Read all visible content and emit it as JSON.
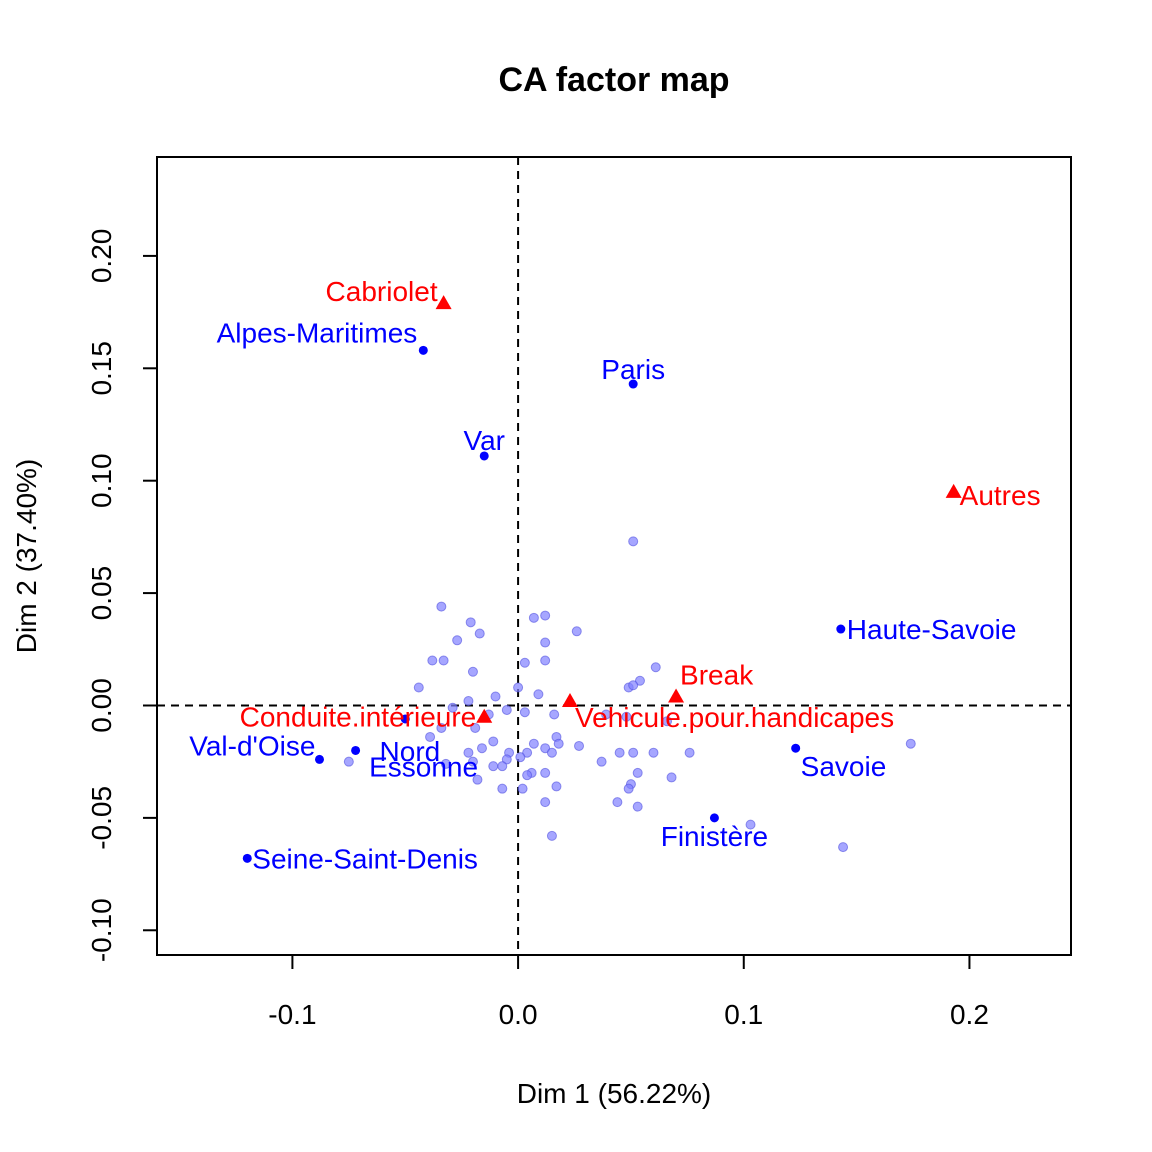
{
  "chart_data": {
    "type": "scatter",
    "title": "CA factor map",
    "xlabel": "Dim 1 (56.22%)",
    "ylabel": "Dim 2 (37.40%)",
    "xlim": [
      -0.16,
      0.245
    ],
    "ylim": [
      -0.111,
      0.244
    ],
    "x_ticks": [
      -0.1,
      0.0,
      0.1,
      0.2
    ],
    "x_tick_labels": [
      "-0.1",
      "0.0",
      "0.1",
      "0.2"
    ],
    "y_ticks": [
      -0.1,
      -0.05,
      0.0,
      0.05,
      0.1,
      0.15,
      0.2
    ],
    "y_tick_labels": [
      "-0.10",
      "-0.05",
      "0.00",
      "0.05",
      "0.10",
      "0.15",
      "0.20"
    ],
    "reference_lines": {
      "x": 0,
      "y": 0,
      "style": "dashed"
    },
    "grid": false,
    "colors": {
      "rows": "#0000ff",
      "rows_unlabeled": "#8080ff",
      "columns": "#ff0000"
    },
    "series": [
      {
        "role": "columns",
        "marker": "triangle",
        "points": [
          {
            "label": "Cabriolet",
            "x": -0.033,
            "y": 0.179
          },
          {
            "label": "Autres",
            "x": 0.193,
            "y": 0.095
          },
          {
            "label": "Break",
            "x": 0.07,
            "y": 0.004
          },
          {
            "label": "Vehicule.pour.handicapes",
            "x": 0.023,
            "y": 0.002
          },
          {
            "label": "Conduite.intérieure",
            "x": -0.015,
            "y": -0.005
          }
        ]
      },
      {
        "role": "rows",
        "marker": "dot",
        "points": [
          {
            "label": "Alpes-Maritimes",
            "x": -0.042,
            "y": 0.158
          },
          {
            "label": "Paris",
            "x": 0.051,
            "y": 0.143
          },
          {
            "label": "Var",
            "x": -0.015,
            "y": 0.111
          },
          {
            "label": "Haute-Savoie",
            "x": 0.143,
            "y": 0.034
          },
          {
            "label": "Nord",
            "x": -0.05,
            "y": -0.006
          },
          {
            "label": "Essonne",
            "x": -0.072,
            "y": -0.02
          },
          {
            "label": "Val-d'Oise",
            "x": -0.088,
            "y": -0.024
          },
          {
            "label": "Savoie",
            "x": 0.123,
            "y": -0.019
          },
          {
            "label": "Finistère",
            "x": 0.087,
            "y": -0.05
          },
          {
            "label": "Seine-Saint-Denis",
            "x": -0.12,
            "y": -0.068
          }
        ]
      },
      {
        "role": "rows_unlabeled",
        "marker": "dot",
        "points": [
          {
            "x": 0.051,
            "y": 0.073
          },
          {
            "x": -0.034,
            "y": 0.044
          },
          {
            "x": 0.012,
            "y": 0.04
          },
          {
            "x": 0.007,
            "y": 0.039
          },
          {
            "x": -0.021,
            "y": 0.037
          },
          {
            "x": -0.017,
            "y": 0.032
          },
          {
            "x": 0.026,
            "y": 0.033
          },
          {
            "x": -0.027,
            "y": 0.029
          },
          {
            "x": 0.012,
            "y": 0.028
          },
          {
            "x": -0.038,
            "y": 0.02
          },
          {
            "x": -0.033,
            "y": 0.02
          },
          {
            "x": 0.012,
            "y": 0.02
          },
          {
            "x": 0.003,
            "y": 0.019
          },
          {
            "x": -0.02,
            "y": 0.015
          },
          {
            "x": 0.061,
            "y": 0.017
          },
          {
            "x": 0.054,
            "y": 0.011
          },
          {
            "x": 0.049,
            "y": 0.008
          },
          {
            "x": 0.051,
            "y": 0.009
          },
          {
            "x": -0.044,
            "y": 0.008
          },
          {
            "x": 0.0,
            "y": 0.008
          },
          {
            "x": 0.009,
            "y": 0.005
          },
          {
            "x": -0.01,
            "y": 0.004
          },
          {
            "x": -0.022,
            "y": 0.002
          },
          {
            "x": -0.029,
            "y": -0.001
          },
          {
            "x": -0.005,
            "y": -0.002
          },
          {
            "x": -0.013,
            "y": -0.004
          },
          {
            "x": 0.003,
            "y": -0.003
          },
          {
            "x": 0.016,
            "y": -0.004
          },
          {
            "x": 0.039,
            "y": -0.004
          },
          {
            "x": 0.048,
            "y": -0.005
          },
          {
            "x": 0.066,
            "y": -0.007
          },
          {
            "x": -0.034,
            "y": -0.01
          },
          {
            "x": -0.019,
            "y": -0.01
          },
          {
            "x": -0.039,
            "y": -0.014
          },
          {
            "x": 0.017,
            "y": -0.014
          },
          {
            "x": 0.007,
            "y": -0.017
          },
          {
            "x": -0.011,
            "y": -0.016
          },
          {
            "x": -0.016,
            "y": -0.019
          },
          {
            "x": 0.018,
            "y": -0.017
          },
          {
            "x": 0.012,
            "y": -0.019
          },
          {
            "x": 0.027,
            "y": -0.018
          },
          {
            "x": -0.022,
            "y": -0.021
          },
          {
            "x": -0.004,
            "y": -0.021
          },
          {
            "x": 0.004,
            "y": -0.021
          },
          {
            "x": 0.015,
            "y": -0.021
          },
          {
            "x": 0.045,
            "y": -0.021
          },
          {
            "x": 0.051,
            "y": -0.021
          },
          {
            "x": 0.06,
            "y": -0.021
          },
          {
            "x": 0.076,
            "y": -0.021
          },
          {
            "x": -0.02,
            "y": -0.025
          },
          {
            "x": -0.005,
            "y": -0.024
          },
          {
            "x": 0.001,
            "y": -0.023
          },
          {
            "x": 0.037,
            "y": -0.025
          },
          {
            "x": -0.075,
            "y": -0.025
          },
          {
            "x": -0.032,
            "y": -0.026
          },
          {
            "x": -0.011,
            "y": -0.027
          },
          {
            "x": -0.007,
            "y": -0.027
          },
          {
            "x": 0.006,
            "y": -0.03
          },
          {
            "x": 0.012,
            "y": -0.03
          },
          {
            "x": 0.053,
            "y": -0.03
          },
          {
            "x": 0.068,
            "y": -0.032
          },
          {
            "x": -0.018,
            "y": -0.033
          },
          {
            "x": 0.004,
            "y": -0.031
          },
          {
            "x": 0.05,
            "y": -0.035
          },
          {
            "x": -0.007,
            "y": -0.037
          },
          {
            "x": 0.002,
            "y": -0.037
          },
          {
            "x": 0.017,
            "y": -0.036
          },
          {
            "x": 0.049,
            "y": -0.037
          },
          {
            "x": 0.012,
            "y": -0.043
          },
          {
            "x": 0.044,
            "y": -0.043
          },
          {
            "x": 0.053,
            "y": -0.045
          },
          {
            "x": 0.103,
            "y": -0.053
          },
          {
            "x": 0.015,
            "y": -0.058
          },
          {
            "x": 0.174,
            "y": -0.017
          },
          {
            "x": 0.144,
            "y": -0.063
          }
        ]
      }
    ]
  }
}
